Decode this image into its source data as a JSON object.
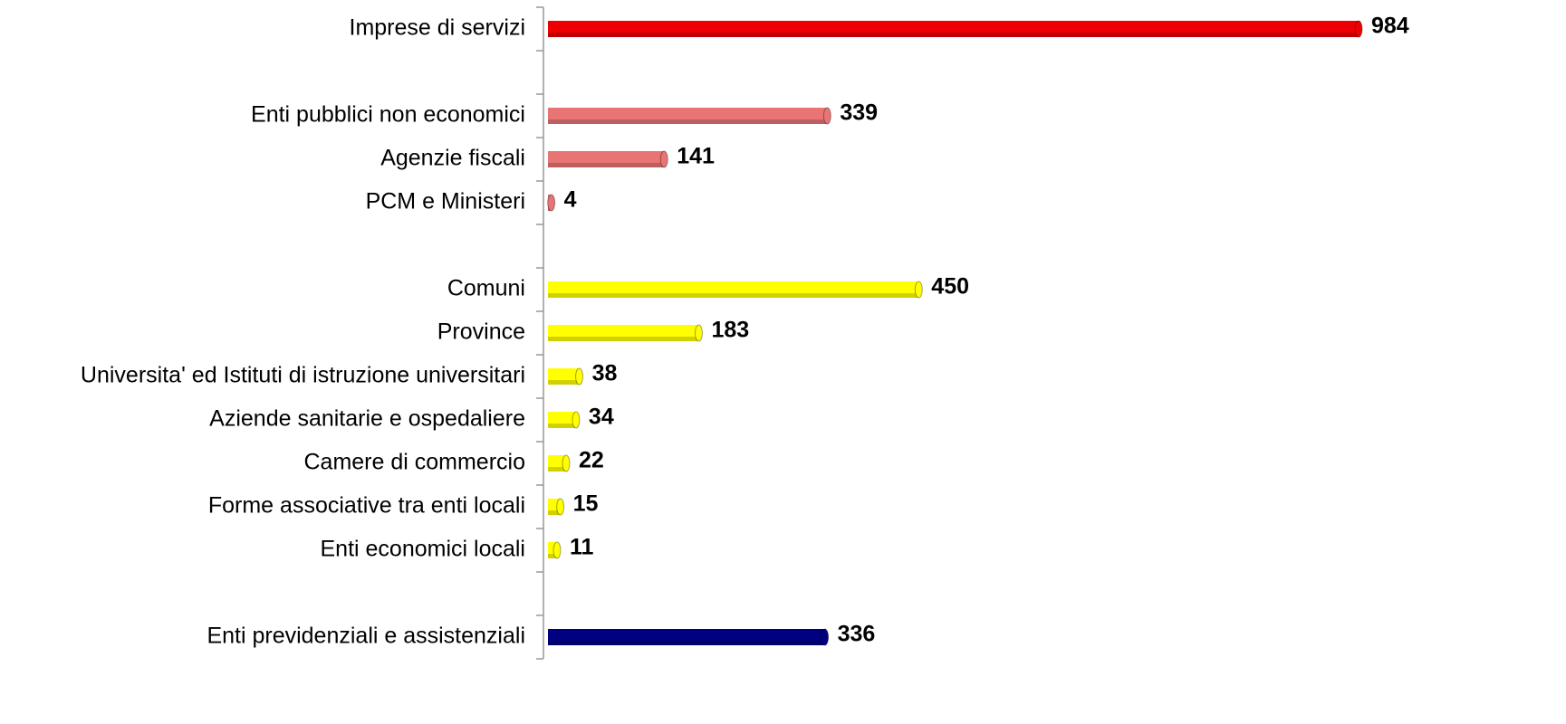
{
  "chart_data": {
    "type": "hbar",
    "categories": [
      "Imprese di servizi",
      null,
      "Enti pubblici non economici",
      "Agenzie fiscali",
      "PCM e Ministeri",
      null,
      "Comuni",
      "Province",
      "Universita' ed Istituti di istruzione universitari",
      "Aziende sanitarie e ospedaliere",
      "Camere di commercio",
      "Forme associative tra enti locali",
      "Enti economici locali",
      null,
      "Enti previdenziali e assistenziali"
    ],
    "values": [
      984,
      null,
      339,
      141,
      4,
      null,
      450,
      183,
      38,
      34,
      22,
      15,
      11,
      null,
      336
    ],
    "colors": [
      "#ee0000",
      null,
      "#e87474",
      "#e87474",
      "#e87474",
      null,
      "#ffff00",
      "#ffff00",
      "#ffff00",
      "#ffff00",
      "#ffff00",
      "#ffff00",
      "#ffff00",
      null,
      "#000080"
    ]
  }
}
